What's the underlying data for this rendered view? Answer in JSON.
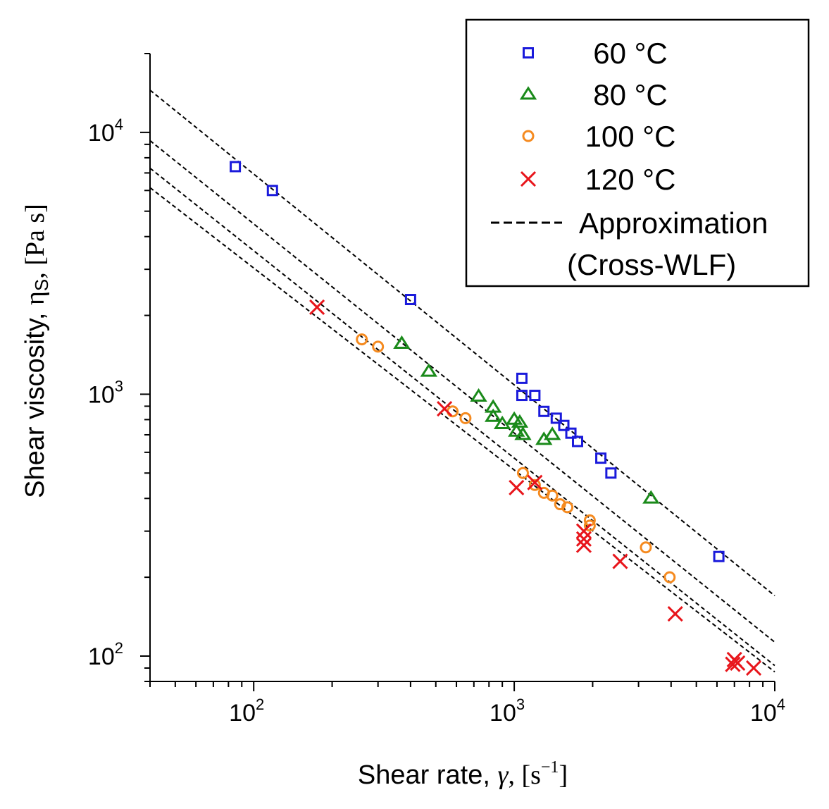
{
  "chart_data": {
    "type": "scatter",
    "x_scale": "log",
    "y_scale": "log",
    "xlim": [
      40,
      10000
    ],
    "ylim": [
      80,
      20000
    ],
    "xlabel": {
      "main": "Shear rate, ",
      "symbol": "γ",
      "unit_open": ", [s",
      "unit_exp": "−1",
      "unit_close": "]"
    },
    "ylabel": {
      "main": "Shear viscosity, ",
      "symbol": "η",
      "sub": "S",
      "unit": ", [Pa s]"
    },
    "x_ticks": [
      {
        "base": "10",
        "exp": "2",
        "value": 100
      },
      {
        "base": "10",
        "exp": "3",
        "value": 1000
      },
      {
        "base": "10",
        "exp": "4",
        "value": 10000
      }
    ],
    "y_ticks": [
      {
        "base": "10",
        "exp": "2",
        "value": 100
      },
      {
        "base": "10",
        "exp": "3",
        "value": 1000
      },
      {
        "base": "10",
        "exp": "4",
        "value": 10000
      }
    ],
    "legend_position": "top-right",
    "series": [
      {
        "name": "60 °C",
        "marker": "square",
        "color": "#1a1adb",
        "points": [
          [
            85,
            7400
          ],
          [
            118,
            6000
          ],
          [
            400,
            2300
          ],
          [
            1070,
            1150
          ],
          [
            1070,
            990
          ],
          [
            1200,
            990
          ],
          [
            1300,
            860
          ],
          [
            1450,
            810
          ],
          [
            1550,
            760
          ],
          [
            1650,
            710
          ],
          [
            1750,
            660
          ],
          [
            2150,
            570
          ],
          [
            2350,
            500
          ],
          [
            6100,
            240
          ]
        ]
      },
      {
        "name": "80 °C",
        "marker": "triangle",
        "color": "#1a8a1a",
        "points": [
          [
            370,
            1560
          ],
          [
            470,
            1220
          ],
          [
            730,
            980
          ],
          [
            830,
            890
          ],
          [
            830,
            820
          ],
          [
            900,
            770
          ],
          [
            1000,
            800
          ],
          [
            1050,
            780
          ],
          [
            1020,
            720
          ],
          [
            1080,
            700
          ],
          [
            1300,
            670
          ],
          [
            1400,
            700
          ],
          [
            3350,
            400
          ]
        ]
      },
      {
        "name": "100 °C",
        "marker": "circle",
        "color": "#f58a1f",
        "points": [
          [
            260,
            1620
          ],
          [
            300,
            1520
          ],
          [
            580,
            860
          ],
          [
            650,
            810
          ],
          [
            1080,
            500
          ],
          [
            1200,
            450
          ],
          [
            1300,
            420
          ],
          [
            1400,
            410
          ],
          [
            1500,
            380
          ],
          [
            1600,
            370
          ],
          [
            1950,
            330
          ],
          [
            1950,
            315
          ],
          [
            3200,
            260
          ],
          [
            3950,
            200
          ]
        ]
      },
      {
        "name": "120 °C",
        "marker": "x",
        "color": "#e8151b",
        "points": [
          [
            175,
            2150
          ],
          [
            540,
            880
          ],
          [
            1020,
            440
          ],
          [
            1200,
            460
          ],
          [
            1850,
            300
          ],
          [
            1850,
            280
          ],
          [
            1850,
            265
          ],
          [
            2550,
            230
          ],
          [
            4150,
            145
          ],
          [
            7000,
            97
          ],
          [
            7200,
            94
          ],
          [
            8300,
            90
          ],
          [
            6900,
            93
          ]
        ]
      }
    ],
    "approximation": {
      "name": "Approximation",
      "name_line2": "(Cross-WLF)",
      "style": "dashed",
      "color": "#000000",
      "lines": [
        {
          "label": "60 °C fit",
          "points": [
            [
              40,
              14500
            ],
            [
              10000,
              170
            ]
          ]
        },
        {
          "label": "80 °C fit",
          "points": [
            [
              40,
              9300
            ],
            [
              10000,
              113
            ]
          ]
        },
        {
          "label": "100 °C fit",
          "points": [
            [
              40,
              7300
            ],
            [
              10000,
              92
            ]
          ]
        },
        {
          "label": "120 °C fit",
          "points": [
            [
              40,
              6150
            ],
            [
              10000,
              87
            ]
          ]
        }
      ]
    }
  }
}
